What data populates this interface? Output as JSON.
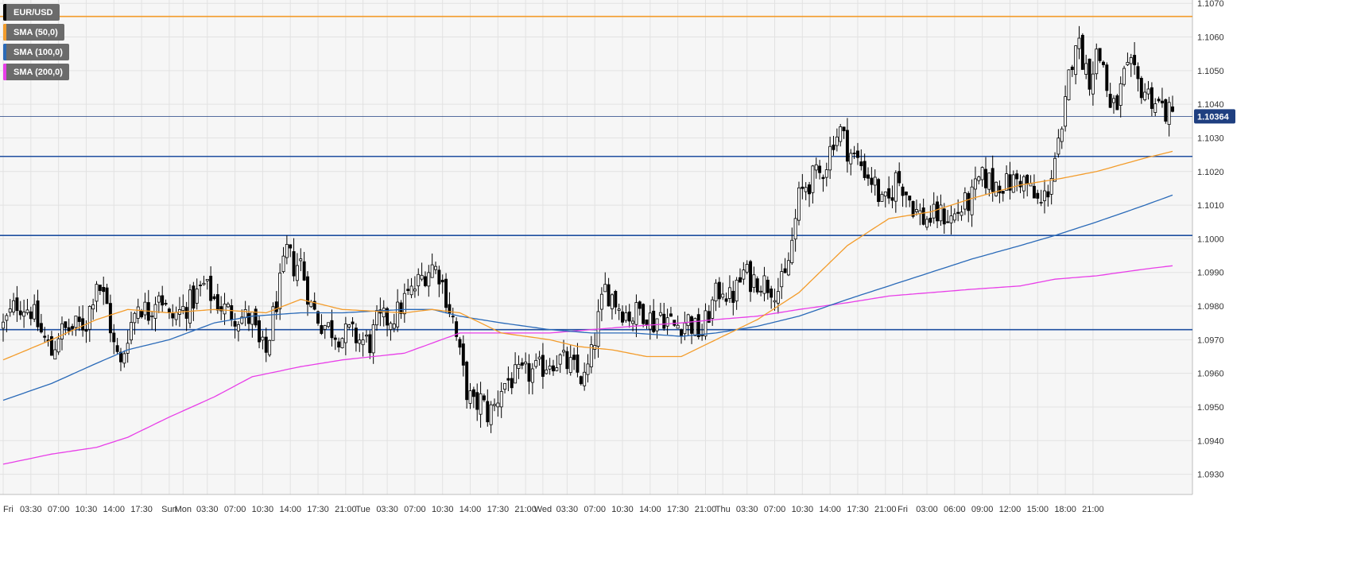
{
  "symbol": "EUR/USD",
  "legend": [
    {
      "label": "EUR/USD",
      "color": "#000000"
    },
    {
      "label": "SMA (50,0)",
      "color": "#f39c2b"
    },
    {
      "label": "SMA (100,0)",
      "color": "#2a6ab8"
    },
    {
      "label": "SMA (200,0)",
      "color": "#e83ee8"
    }
  ],
  "current_price_label": "1.10364",
  "colors": {
    "background": "#ffffff",
    "plot_background": "#f6f6f6",
    "grid": "#e2e2e2",
    "candle": "#000000",
    "sma50": "#f39c2b",
    "sma100": "#2a6ab8",
    "sma200": "#e83ee8",
    "level_line": "#1f4fa0",
    "resistance_top": "#f39c2b",
    "current_price": "#1f3f80"
  },
  "chart_data": {
    "type": "candlestick",
    "title": "",
    "xlabel": "",
    "ylabel": "",
    "ylim": [
      1.0924,
      1.1071
    ],
    "y_ticks": [
      "1.0930",
      "1.0940",
      "1.0950",
      "1.0960",
      "1.0970",
      "1.0980",
      "1.0990",
      "1.1000",
      "1.1010",
      "1.1020",
      "1.1030",
      "1.1040",
      "1.1050",
      "1.1060",
      "1.1070"
    ],
    "x_ticks": [
      "Fri",
      "03:30",
      "07:00",
      "10:30",
      "14:00",
      "17:30",
      "Sun",
      "Mon",
      "03:30",
      "07:00",
      "10:30",
      "14:00",
      "17:30",
      "21:00",
      "Tue",
      "03:30",
      "07:00",
      "10:30",
      "14:00",
      "17:30",
      "21:00",
      "Wed",
      "03:30",
      "07:00",
      "10:30",
      "14:00",
      "17:30",
      "21:00",
      "Thu",
      "03:30",
      "07:00",
      "10:30",
      "14:00",
      "17:30",
      "21:00",
      "Fri",
      "03:00",
      "06:00",
      "09:00",
      "12:00",
      "15:00",
      "18:00",
      "21:00"
    ],
    "horizontal_levels": [
      {
        "value": 1.10661,
        "color": "#f39c2b"
      },
      {
        "value": 1.10245,
        "color": "#1f4fa0"
      },
      {
        "value": 1.1001,
        "color": "#1f4fa0"
      },
      {
        "value": 1.0973,
        "color": "#1f4fa0"
      }
    ],
    "current_price": 1.10364,
    "close_path": [
      [
        0,
        1.0974
      ],
      [
        4,
        1.0981
      ],
      [
        8,
        1.0979
      ],
      [
        11,
        1.0972
      ],
      [
        14,
        1.0966
      ],
      [
        16,
        1.0972
      ],
      [
        19,
        1.0973
      ],
      [
        24,
        1.0975
      ],
      [
        27,
        1.0988
      ],
      [
        30,
        1.098
      ],
      [
        32,
        1.0968
      ],
      [
        34,
        1.0962
      ],
      [
        36,
        1.0972
      ],
      [
        39,
        1.0981
      ],
      [
        42,
        1.0978
      ],
      [
        45,
        1.0985
      ],
      [
        48,
        1.0976
      ],
      [
        52,
        1.0979
      ],
      [
        55,
        1.0982
      ],
      [
        58,
        1.0986
      ],
      [
        61,
        1.0982
      ],
      [
        64,
        1.0979
      ],
      [
        68,
        1.0977
      ],
      [
        72,
        1.0976
      ],
      [
        74,
        1.0968
      ],
      [
        76,
        1.0966
      ],
      [
        78,
        1.0977
      ],
      [
        80,
        1.0986
      ],
      [
        82,
        1.0996
      ],
      [
        84,
        1.0992
      ],
      [
        86,
        1.0993
      ],
      [
        89,
        1.098
      ],
      [
        92,
        1.0975
      ],
      [
        95,
        1.0973
      ],
      [
        98,
        1.0971
      ],
      [
        100,
        1.0972
      ],
      [
        103,
        1.097
      ],
      [
        106,
        1.0969
      ],
      [
        108,
        1.0975
      ],
      [
        111,
        1.0976
      ],
      [
        114,
        1.0978
      ],
      [
        116,
        1.0982
      ],
      [
        118,
        1.0984
      ],
      [
        120,
        1.0987
      ],
      [
        122,
        1.099
      ],
      [
        124,
        1.0992
      ],
      [
        126,
        1.099
      ],
      [
        128,
        1.0983
      ],
      [
        130,
        1.0976
      ],
      [
        132,
        1.0965
      ],
      [
        134,
        1.0955
      ],
      [
        136,
        1.095
      ],
      [
        138,
        1.0952
      ],
      [
        140,
        1.0948
      ],
      [
        142,
        1.095
      ],
      [
        144,
        1.0956
      ],
      [
        146,
        1.0958
      ],
      [
        149,
        1.0959
      ],
      [
        152,
        1.096
      ],
      [
        155,
        1.0961
      ],
      [
        158,
        1.0964
      ],
      [
        161,
        1.0964
      ],
      [
        164,
        1.0962
      ],
      [
        166,
        1.096
      ],
      [
        168,
        1.0958
      ],
      [
        170,
        1.0965
      ],
      [
        172,
        1.0976
      ],
      [
        174,
        1.0985
      ],
      [
        176,
        1.0983
      ],
      [
        178,
        1.098
      ],
      [
        180,
        1.0978
      ],
      [
        182,
        1.0977
      ],
      [
        184,
        1.0979
      ],
      [
        186,
        1.0978
      ],
      [
        188,
        1.0975
      ],
      [
        190,
        1.0978
      ],
      [
        192,
        1.0976
      ],
      [
        194,
        1.0974
      ],
      [
        196,
        1.0975
      ],
      [
        198,
        1.0976
      ],
      [
        200,
        1.0973
      ],
      [
        202,
        1.0972
      ],
      [
        204,
        1.0978
      ],
      [
        206,
        1.0983
      ],
      [
        208,
        1.0986
      ],
      [
        210,
        1.0982
      ],
      [
        212,
        1.0985
      ],
      [
        214,
        1.099
      ],
      [
        216,
        1.0988
      ],
      [
        218,
        1.0988
      ],
      [
        220,
        1.0987
      ],
      [
        222,
        1.0986
      ],
      [
        224,
        1.0985
      ],
      [
        226,
        1.0988
      ],
      [
        228,
        1.0999
      ],
      [
        230,
        1.1012
      ],
      [
        232,
        1.1016
      ],
      [
        234,
        1.1018
      ],
      [
        236,
        1.1019
      ],
      [
        238,
        1.1023
      ],
      [
        240,
        1.103
      ],
      [
        242,
        1.1032
      ],
      [
        244,
        1.1027
      ],
      [
        246,
        1.1024
      ],
      [
        248,
        1.1022
      ],
      [
        250,
        1.1019
      ],
      [
        252,
        1.1016
      ],
      [
        254,
        1.101
      ],
      [
        256,
        1.1011
      ],
      [
        258,
        1.1018
      ],
      [
        260,
        1.1016
      ],
      [
        262,
        1.1012
      ],
      [
        264,
        1.1008
      ],
      [
        266,
        1.1006
      ],
      [
        268,
        1.1006
      ],
      [
        270,
        1.1007
      ],
      [
        272,
        1.1007
      ],
      [
        274,
        1.1006
      ],
      [
        276,
        1.1008
      ],
      [
        278,
        1.101
      ],
      [
        280,
        1.1012
      ],
      [
        282,
        1.1017
      ],
      [
        284,
        1.1018
      ],
      [
        286,
        1.1016
      ],
      [
        288,
        1.1017
      ],
      [
        290,
        1.1016
      ],
      [
        292,
        1.1017
      ],
      [
        294,
        1.1018
      ],
      [
        296,
        1.1016
      ],
      [
        298,
        1.1012
      ],
      [
        300,
        1.101
      ],
      [
        302,
        1.1015
      ],
      [
        304,
        1.1024
      ],
      [
        306,
        1.103
      ],
      [
        308,
        1.1048
      ],
      [
        310,
        1.106
      ],
      [
        312,
        1.1054
      ],
      [
        314,
        1.1048
      ],
      [
        316,
        1.1055
      ],
      [
        318,
        1.1052
      ],
      [
        320,
        1.1038
      ],
      [
        322,
        1.104
      ],
      [
        324,
        1.1048
      ],
      [
        326,
        1.105
      ],
      [
        328,
        1.1046
      ],
      [
        330,
        1.1044
      ],
      [
        332,
        1.1042
      ],
      [
        334,
        1.104
      ],
      [
        336,
        1.1038
      ],
      [
        338,
        1.1036
      ]
    ],
    "sma50": [
      [
        0,
        1.0964
      ],
      [
        14,
        1.097
      ],
      [
        27,
        1.0976
      ],
      [
        36,
        1.0979
      ],
      [
        48,
        1.0978
      ],
      [
        61,
        1.0979
      ],
      [
        76,
        1.0978
      ],
      [
        86,
        1.0982
      ],
      [
        98,
        1.0979
      ],
      [
        116,
        1.0978
      ],
      [
        124,
        1.0979
      ],
      [
        132,
        1.0978
      ],
      [
        144,
        1.0972
      ],
      [
        158,
        1.097
      ],
      [
        166,
        1.0968
      ],
      [
        176,
        1.0967
      ],
      [
        186,
        1.0965
      ],
      [
        196,
        1.0965
      ],
      [
        206,
        1.097
      ],
      [
        218,
        1.0976
      ],
      [
        230,
        1.0984
      ],
      [
        244,
        1.0998
      ],
      [
        256,
        1.1006
      ],
      [
        268,
        1.1008
      ],
      [
        280,
        1.1012
      ],
      [
        294,
        1.1016
      ],
      [
        306,
        1.1018
      ],
      [
        316,
        1.102
      ],
      [
        330,
        1.1024
      ],
      [
        338,
        1.1026
      ]
    ],
    "sma100": [
      [
        0,
        1.0952
      ],
      [
        14,
        1.0957
      ],
      [
        27,
        1.0963
      ],
      [
        36,
        1.0967
      ],
      [
        48,
        1.097
      ],
      [
        61,
        1.0975
      ],
      [
        72,
        1.0977
      ],
      [
        86,
        1.0978
      ],
      [
        98,
        1.0978
      ],
      [
        116,
        1.0979
      ],
      [
        124,
        1.0979
      ],
      [
        132,
        1.0977
      ],
      [
        144,
        1.0975
      ],
      [
        158,
        1.0973
      ],
      [
        170,
        1.0972
      ],
      [
        182,
        1.0972
      ],
      [
        196,
        1.0971
      ],
      [
        206,
        1.0972
      ],
      [
        218,
        1.0974
      ],
      [
        230,
        1.0977
      ],
      [
        244,
        1.0982
      ],
      [
        256,
        1.0986
      ],
      [
        268,
        1.099
      ],
      [
        280,
        1.0994
      ],
      [
        294,
        1.0998
      ],
      [
        304,
        1.1001
      ],
      [
        316,
        1.1005
      ],
      [
        330,
        1.101
      ],
      [
        338,
        1.1013
      ]
    ],
    "sma200": [
      [
        0,
        1.0933
      ],
      [
        14,
        1.0936
      ],
      [
        27,
        1.0938
      ],
      [
        36,
        1.0941
      ],
      [
        48,
        1.0947
      ],
      [
        61,
        1.0953
      ],
      [
        72,
        1.0959
      ],
      [
        86,
        1.0962
      ],
      [
        98,
        1.0964
      ],
      [
        116,
        1.0966
      ],
      [
        124,
        1.0969
      ],
      [
        132,
        1.0972
      ],
      [
        144,
        1.0972
      ],
      [
        158,
        1.0972
      ],
      [
        170,
        1.0973
      ],
      [
        182,
        1.0974
      ],
      [
        196,
        1.0975
      ],
      [
        206,
        1.0976
      ],
      [
        218,
        1.0977
      ],
      [
        230,
        1.0979
      ],
      [
        244,
        1.0981
      ],
      [
        256,
        1.0983
      ],
      [
        268,
        1.0984
      ],
      [
        280,
        1.0985
      ],
      [
        294,
        1.0986
      ],
      [
        304,
        1.0988
      ],
      [
        316,
        1.0989
      ],
      [
        330,
        1.0991
      ],
      [
        338,
        1.0992
      ]
    ]
  }
}
